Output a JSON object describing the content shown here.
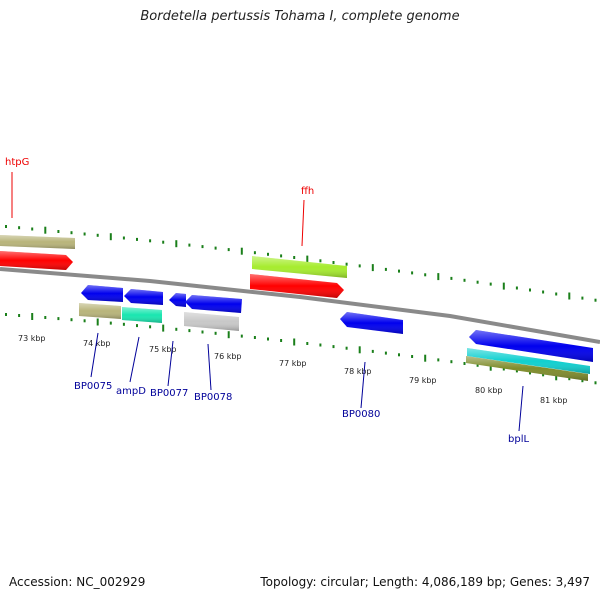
{
  "title": "Bordetella pertussis Tohama I, complete genome",
  "footer": {
    "accession": "Accession: NC_002929",
    "stats": "Topology: circular; Length: 4,086,189 bp; Genes: 3,497"
  },
  "ticks": [
    "73 kbp",
    "74 kbp",
    "75 kbp",
    "76 kbp",
    "77 kbp",
    "78 kbp",
    "79 kbp",
    "80 kbp",
    "81 kbp"
  ],
  "labels": {
    "htpG": "htpG",
    "ffh": "ffh",
    "BP0075": "BP0075",
    "ampD": "ampD",
    "BP0077": "BP0077",
    "BP0078": "BP0078",
    "BP0080": "BP0080",
    "bplL": "bplL"
  },
  "colors": {
    "cds_forward": "#ff0000",
    "cds_reverse": "#0000ee",
    "khaki": "#b8b47a",
    "lime": "#a6ec2e",
    "teal": "#19e6b0",
    "cyan": "#10d0d0",
    "olive": "#7f8c2c",
    "grey": "#c8c8c8",
    "backbone": "#8a8a8a",
    "tick": "#1a7f1a",
    "label_red": "#ee0000",
    "label_blue": "#000099"
  }
}
